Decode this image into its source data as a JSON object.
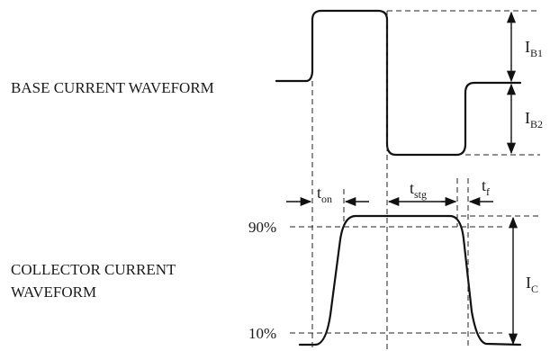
{
  "labels": {
    "base_waveform": "BASE CURRENT WAVEFORM",
    "collector_waveform_line1": "COLLECTOR CURRENT",
    "collector_waveform_line2": "WAVEFORM"
  },
  "current_labels": {
    "ib1_main": "I",
    "ib1_sub": "B1",
    "ib2_main": "I",
    "ib2_sub": "B2",
    "ic_main": "I",
    "ic_sub": "C"
  },
  "time_labels": {
    "ton_main": "t",
    "ton_sub": "on",
    "tstg_main": "t",
    "tstg_sub": "stg",
    "tf_main": "t",
    "tf_sub": "f"
  },
  "percent_labels": {
    "p90": "90%",
    "p10": "10%"
  }
}
